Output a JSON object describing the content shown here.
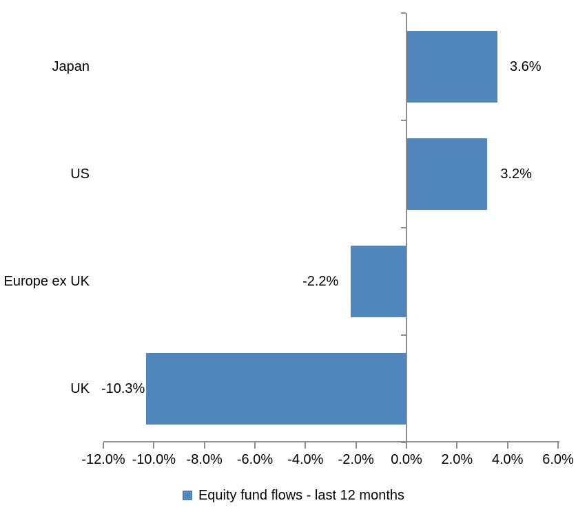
{
  "chart_data": {
    "type": "bar",
    "orientation": "horizontal",
    "title": "",
    "categories": [
      "Japan",
      "US",
      "Europe ex UK",
      "UK"
    ],
    "series": [
      {
        "name": "Equity fund flows - last 12 months",
        "values": [
          3.6,
          3.2,
          -2.2,
          -10.3
        ],
        "data_labels": [
          "3.6%",
          "3.2%",
          "-2.2%",
          "-10.3%"
        ]
      }
    ],
    "xlabel": "",
    "ylabel": "",
    "xlim": [
      -12,
      6
    ],
    "x_ticks": [
      -12,
      -10,
      -8,
      -6,
      -4,
      -2,
      0,
      2,
      4,
      6
    ],
    "x_tick_labels": [
      "-12.0%",
      "-10.0%",
      "-8.0%",
      "-6.0%",
      "-4.0%",
      "-2.0%",
      "0.0%",
      "2.0%",
      "4.0%",
      "6.0%"
    ],
    "grid": false,
    "legend_position": "bottom",
    "bar_color": "#4F86BC",
    "axis_color": "#8E8E8E",
    "text_color": "#000000"
  },
  "legend": {
    "label": "Equity fund flows - last 12 months"
  }
}
